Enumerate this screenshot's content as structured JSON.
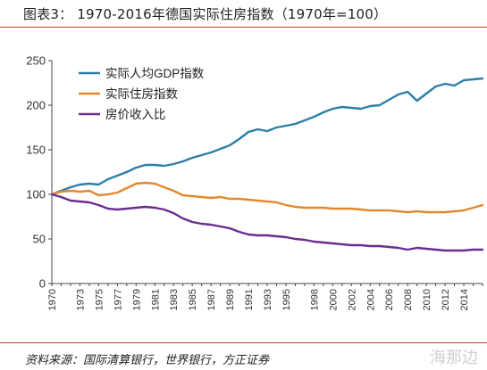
{
  "title": "图表3：  1970-2016年德国实际住房指数（1970年=100）",
  "source": "资料来源：国际清算银行，世界银行，方正证券",
  "watermark": "海那边",
  "colors": {
    "gdp": "#2e7fa8",
    "house": "#e08a2e",
    "income": "#6a2d8f",
    "axis": "#444444"
  },
  "chart_data": {
    "type": "line",
    "title": "",
    "xlabel": "",
    "ylabel": "",
    "xlim": [
      1970,
      2016
    ],
    "ylim": [
      0,
      250
    ],
    "yticks": [
      0,
      50,
      100,
      150,
      200,
      250
    ],
    "xticks": [
      "1970",
      "1973",
      "1975",
      "1977",
      "1979",
      "1981",
      "1983",
      "1985",
      "1987",
      "1989",
      "1991",
      "1993",
      "1995",
      "1998",
      "2000",
      "2002",
      "2004",
      "2006",
      "2008",
      "2010",
      "2012",
      "2014"
    ],
    "grid": false,
    "legend": "top-left",
    "series": [
      {
        "name": "实际人均GDP指数",
        "color": "#2e7fa8",
        "x": [
          1970,
          1971,
          1972,
          1973,
          1974,
          1975,
          1976,
          1977,
          1978,
          1979,
          1980,
          1981,
          1982,
          1983,
          1984,
          1985,
          1986,
          1987,
          1988,
          1989,
          1990,
          1991,
          1992,
          1993,
          1994,
          1995,
          1996,
          1997,
          1998,
          1999,
          2000,
          2001,
          2002,
          2003,
          2004,
          2005,
          2006,
          2007,
          2008,
          2009,
          2010,
          2011,
          2012,
          2013,
          2014,
          2015,
          2016
        ],
        "values": [
          100,
          104,
          108,
          111,
          112,
          111,
          117,
          121,
          125,
          130,
          133,
          133,
          132,
          134,
          137,
          141,
          144,
          147,
          151,
          155,
          162,
          170,
          173,
          171,
          175,
          177,
          179,
          183,
          187,
          192,
          196,
          198,
          197,
          196,
          199,
          200,
          206,
          212,
          215,
          205,
          213,
          221,
          224,
          222,
          228,
          229,
          230
        ]
      },
      {
        "name": "实际住房指数",
        "color": "#e08a2e",
        "x": [
          1970,
          1971,
          1972,
          1973,
          1974,
          1975,
          1976,
          1977,
          1978,
          1979,
          1980,
          1981,
          1982,
          1983,
          1984,
          1985,
          1986,
          1987,
          1988,
          1989,
          1990,
          1991,
          1992,
          1993,
          1994,
          1995,
          1996,
          1997,
          1998,
          1999,
          2000,
          2001,
          2002,
          2003,
          2004,
          2005,
          2006,
          2007,
          2008,
          2009,
          2010,
          2011,
          2012,
          2013,
          2014,
          2015,
          2016
        ],
        "values": [
          100,
          103,
          104,
          103,
          104,
          99,
          100,
          102,
          107,
          112,
          113,
          112,
          108,
          104,
          99,
          98,
          97,
          96,
          97,
          95,
          95,
          94,
          93,
          92,
          91,
          88,
          86,
          85,
          85,
          85,
          84,
          84,
          84,
          83,
          82,
          82,
          82,
          81,
          80,
          81,
          80,
          80,
          80,
          81,
          82,
          85,
          88
        ]
      },
      {
        "name": "房价收入比",
        "color": "#6a2d8f",
        "x": [
          1970,
          1971,
          1972,
          1973,
          1974,
          1975,
          1976,
          1977,
          1978,
          1979,
          1980,
          1981,
          1982,
          1983,
          1984,
          1985,
          1986,
          1987,
          1988,
          1989,
          1990,
          1991,
          1992,
          1993,
          1994,
          1995,
          1996,
          1997,
          1998,
          1999,
          2000,
          2001,
          2002,
          2003,
          2004,
          2005,
          2006,
          2007,
          2008,
          2009,
          2010,
          2011,
          2012,
          2013,
          2014,
          2015,
          2016
        ],
        "values": [
          100,
          97,
          93,
          92,
          91,
          88,
          84,
          83,
          84,
          85,
          86,
          85,
          83,
          79,
          73,
          69,
          67,
          66,
          64,
          62,
          58,
          55,
          54,
          54,
          53,
          52,
          50,
          49,
          47,
          46,
          45,
          44,
          43,
          43,
          42,
          42,
          41,
          40,
          38,
          40,
          39,
          38,
          37,
          37,
          37,
          38,
          38
        ]
      }
    ]
  }
}
